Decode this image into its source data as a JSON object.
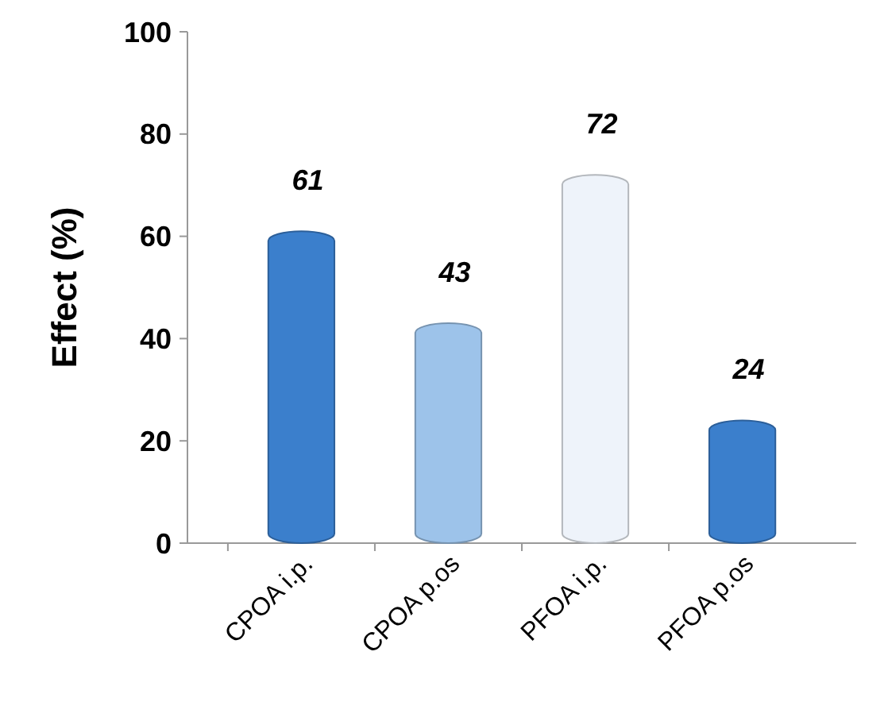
{
  "chart_data": {
    "type": "bar",
    "ylabel": "Effect (%)",
    "categories": [
      "CPOA i.p.",
      "CPOA p.os",
      "PFOA i.p.",
      "PFOA p.os"
    ],
    "values": [
      61,
      43,
      72,
      24
    ],
    "colors": [
      "#3b7fcc",
      "#9dc3ea",
      "#eef3fa",
      "#3b7fcc"
    ],
    "ylim": [
      0,
      100
    ],
    "yticks": [
      0,
      20,
      40,
      60,
      80,
      100
    ],
    "data_labels": true
  }
}
